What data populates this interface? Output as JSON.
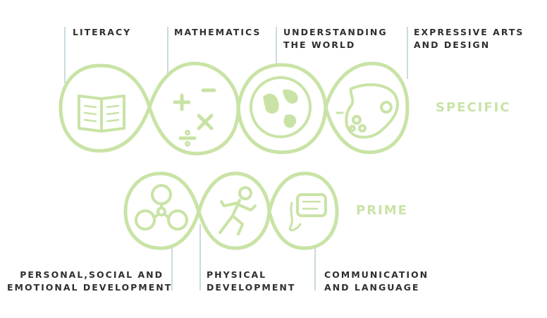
{
  "colors": {
    "accent": "#c9e3a6",
    "leader": "#b9cdd6",
    "text": "#2f2f2f"
  },
  "groups": {
    "specific": "SPECIFIC",
    "prime": "PRIME"
  },
  "areas": {
    "literacy": {
      "lines": [
        "LITERACY"
      ],
      "icon": "open-book-icon"
    },
    "mathematics": {
      "lines": [
        "MATHEMATICS"
      ],
      "icon": "math-symbols-icon"
    },
    "world": {
      "lines": [
        "UNDERSTANDING",
        "THE WORLD"
      ],
      "icon": "globe-icon"
    },
    "arts": {
      "lines": [
        "EXPRESSIVE ARTS",
        "AND DESIGN"
      ],
      "icon": "paint-palette-icon"
    },
    "personal": {
      "lines": [
        "PERSONAL,SOCIAL AND",
        "EMOTIONAL DEVELOPMENT"
      ],
      "icon": "people-circles-icon"
    },
    "physical": {
      "lines": [
        "PHYSICAL",
        "DEVELOPMENT"
      ],
      "icon": "running-person-icon"
    },
    "communication": {
      "lines": [
        "COMMUNICATION",
        "AND LANGUAGE"
      ],
      "icon": "speech-bubble-icon"
    }
  }
}
